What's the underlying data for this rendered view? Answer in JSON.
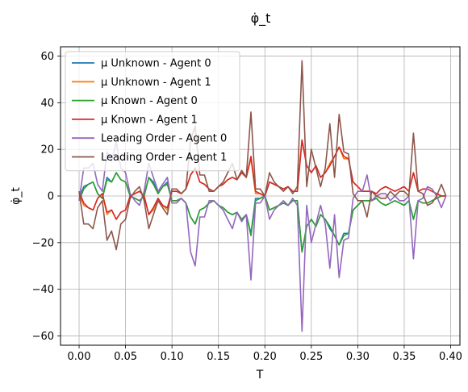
{
  "chart_data": {
    "type": "line",
    "title": "φ̇_t",
    "xlabel": "T",
    "ylabel": "φ̇_t",
    "xlim": [
      -0.02,
      0.41
    ],
    "ylim": [
      -64,
      64
    ],
    "xticks": [
      0.0,
      0.05,
      0.1,
      0.15,
      0.2,
      0.25,
      0.3,
      0.35,
      0.4
    ],
    "xtick_labels": [
      "0.00",
      "0.05",
      "0.10",
      "0.15",
      "0.20",
      "0.25",
      "0.30",
      "0.35",
      "0.40"
    ],
    "yticks": [
      -60,
      -40,
      -20,
      0,
      20,
      40,
      60
    ],
    "ytick_labels": [
      "−60",
      "−40",
      "−20",
      "0",
      "20",
      "40",
      "60"
    ],
    "grid": true,
    "legend_position": "top-left",
    "x": [
      0.0,
      0.005,
      0.01,
      0.015,
      0.02,
      0.025,
      0.03,
      0.035,
      0.04,
      0.045,
      0.05,
      0.055,
      0.06,
      0.065,
      0.07,
      0.075,
      0.08,
      0.085,
      0.09,
      0.095,
      0.1,
      0.105,
      0.11,
      0.115,
      0.12,
      0.125,
      0.13,
      0.135,
      0.14,
      0.145,
      0.15,
      0.155,
      0.16,
      0.165,
      0.17,
      0.175,
      0.18,
      0.185,
      0.19,
      0.195,
      0.2,
      0.205,
      0.21,
      0.215,
      0.22,
      0.225,
      0.23,
      0.235,
      0.24,
      0.245,
      0.25,
      0.255,
      0.26,
      0.265,
      0.27,
      0.275,
      0.28,
      0.285,
      0.29,
      0.295,
      0.3,
      0.305,
      0.31,
      0.315,
      0.32,
      0.325,
      0.33,
      0.335,
      0.34,
      0.345,
      0.35,
      0.355,
      0.36,
      0.365,
      0.37,
      0.375,
      0.38,
      0.385,
      0.39,
      0.395
    ],
    "series": [
      {
        "name": "μ Unknown - Agent 0",
        "color": "#1f77b4",
        "values": [
          -1,
          4,
          5,
          6,
          1,
          -1,
          8,
          6,
          10,
          7,
          6,
          0,
          -1,
          -2,
          0,
          8,
          6,
          1,
          4,
          6,
          -2,
          -2,
          -1,
          -3,
          -9,
          -12,
          -6,
          -5,
          -3,
          -2,
          -4,
          -5,
          -7,
          -8,
          -7,
          -10,
          -8,
          -16,
          -1,
          -1,
          0,
          -6,
          -5,
          -4,
          -3,
          -4,
          -2,
          -2,
          -24,
          -13,
          -10,
          -13,
          -8,
          -10,
          -14,
          -17,
          -21,
          -16,
          -16,
          -6,
          -4,
          -2,
          -2,
          -2,
          -1,
          -3,
          -4,
          -3,
          -2,
          -3,
          -4,
          -2,
          -10,
          -2,
          -3,
          -3,
          -2,
          -1,
          0,
          0
        ]
      },
      {
        "name": "μ Unknown - Agent 1",
        "color": "#ff7f0e",
        "values": [
          1,
          -4,
          -5,
          -6,
          -1,
          1,
          -8,
          -6,
          -10,
          -7,
          -6,
          0,
          1,
          2,
          0,
          -8,
          -6,
          -1,
          -4,
          -6,
          2,
          2,
          1,
          3,
          9,
          12,
          6,
          5,
          3,
          2,
          4,
          5,
          7,
          8,
          7,
          10,
          8,
          16,
          1,
          1,
          0,
          6,
          5,
          4,
          3,
          4,
          2,
          2,
          24,
          13,
          10,
          13,
          8,
          10,
          14,
          17,
          21,
          16,
          16,
          6,
          4,
          2,
          2,
          2,
          1,
          3,
          4,
          3,
          2,
          3,
          4,
          2,
          10,
          2,
          3,
          3,
          2,
          1,
          0,
          0
        ]
      },
      {
        "name": "μ Known - Agent 0",
        "color": "#2ca02c",
        "values": [
          -2,
          3,
          5,
          6,
          1,
          -1,
          7,
          6,
          10,
          7,
          6,
          0,
          -1,
          -2,
          0,
          8,
          5,
          1,
          4,
          5,
          -2,
          -2,
          -1,
          -3,
          -9,
          -12,
          -6,
          -5,
          -3,
          -2,
          -4,
          -5,
          -7,
          -8,
          -7,
          -10,
          -8,
          -17,
          -2,
          -1,
          0,
          -6,
          -5,
          -4,
          -3,
          -4,
          -2,
          -2,
          -24,
          -13,
          -10,
          -13,
          -8,
          -10,
          -13,
          -17,
          -21,
          -17,
          -16,
          -6,
          -4,
          -2,
          -2,
          -2,
          -1,
          -3,
          -4,
          -3,
          -2,
          -3,
          -4,
          -2,
          -10,
          -2,
          -3,
          -3,
          -2,
          -1,
          0,
          0
        ]
      },
      {
        "name": "μ Known - Agent 1",
        "color": "#d62728",
        "values": [
          2,
          -3,
          -5,
          -6,
          -1,
          1,
          -7,
          -6,
          -10,
          -7,
          -6,
          0,
          1,
          2,
          0,
          -8,
          -5,
          -1,
          -4,
          -5,
          2,
          2,
          1,
          3,
          9,
          12,
          6,
          5,
          3,
          2,
          4,
          5,
          7,
          8,
          7,
          10,
          8,
          17,
          2,
          1,
          0,
          6,
          5,
          4,
          3,
          4,
          2,
          2,
          24,
          13,
          10,
          13,
          8,
          10,
          13,
          17,
          21,
          17,
          16,
          6,
          4,
          2,
          2,
          2,
          1,
          3,
          4,
          3,
          2,
          3,
          4,
          2,
          10,
          2,
          3,
          3,
          2,
          1,
          0,
          0
        ]
      },
      {
        "name": "Leading Order - Agent 0",
        "color": "#9467bd",
        "values": [
          -2,
          12,
          12,
          14,
          5,
          2,
          19,
          15,
          23,
          12,
          10,
          1,
          -2,
          -4,
          2,
          14,
          8,
          2,
          5,
          8,
          -3,
          -3,
          -1,
          -3,
          -24,
          -30,
          -9,
          -9,
          -2,
          -2,
          -4,
          -6,
          -10,
          -14,
          -7,
          -11,
          -8,
          -36,
          -3,
          -3,
          0,
          -10,
          -6,
          -4,
          -2,
          -4,
          -1,
          -4,
          -58,
          -4,
          -20,
          -12,
          -4,
          -12,
          -31,
          -8,
          -35,
          -19,
          -18,
          -1,
          2,
          2,
          9,
          -2,
          0,
          1,
          1,
          -2,
          0,
          -2,
          -2,
          0,
          -27,
          -2,
          -1,
          4,
          3,
          0,
          -5,
          0
        ]
      },
      {
        "name": "Leading Order - Agent 1",
        "color": "#8c564b",
        "values": [
          2,
          -12,
          -12,
          -14,
          -5,
          -2,
          -19,
          -15,
          -23,
          -12,
          -10,
          -1,
          2,
          4,
          -2,
          -14,
          -8,
          -2,
          -5,
          -8,
          3,
          3,
          1,
          3,
          24,
          30,
          9,
          9,
          2,
          2,
          4,
          6,
          10,
          14,
          7,
          11,
          8,
          36,
          3,
          3,
          0,
          10,
          6,
          4,
          2,
          4,
          1,
          4,
          58,
          4,
          20,
          12,
          4,
          12,
          31,
          8,
          35,
          19,
          18,
          1,
          -2,
          -2,
          -9,
          2,
          0,
          -1,
          -1,
          2,
          0,
          2,
          2,
          0,
          27,
          2,
          1,
          -4,
          -3,
          0,
          5,
          0
        ]
      }
    ]
  }
}
